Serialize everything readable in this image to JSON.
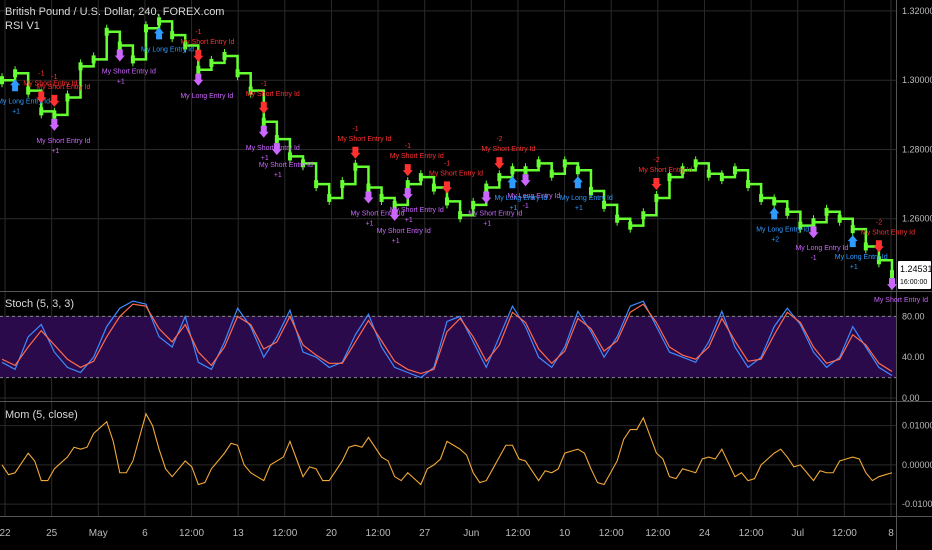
{
  "header": {
    "symbol_title": "British Pound / U.S. Dollar, 240, FOREX.com",
    "strategy_name": "RSI V1"
  },
  "colors": {
    "background": "#000000",
    "grid": "#2a2a2a",
    "candle": "#66ff33",
    "long": "#2f9bff",
    "short": "#ff3030",
    "exit": "#cc66ff",
    "stoch_k": "#3d8bff",
    "stoch_d": "#ff6a4d",
    "stoch_band": "#2a0a4a",
    "momentum": "#f2a93b"
  },
  "price_pane": {
    "price_badge": "1.24531",
    "price_badge_sub": "16:00:00"
  },
  "stoch_pane": {
    "title": "Stoch (5, 3, 3)"
  },
  "mom_pane": {
    "title": "Mom (5, close)"
  },
  "chart_data": [
    {
      "type": "line",
      "pane": "price",
      "series": [
        {
          "name": "GBP/USD",
          "values": [
            1.3,
            1.302,
            1.297,
            1.291,
            1.29,
            1.295,
            1.304,
            1.306,
            1.314,
            1.31,
            1.306,
            1.315,
            1.317,
            1.313,
            1.31,
            1.303,
            1.305,
            1.307,
            1.302,
            1.297,
            1.288,
            1.283,
            1.278,
            1.276,
            1.27,
            1.266,
            1.27,
            1.275,
            1.269,
            1.266,
            1.264,
            1.27,
            1.272,
            1.269,
            1.265,
            1.261,
            1.264,
            1.269,
            1.272,
            1.274,
            1.274,
            1.276,
            1.273,
            1.276,
            1.274,
            1.268,
            1.264,
            1.26,
            1.258,
            1.261,
            1.266,
            1.272,
            1.274,
            1.276,
            1.273,
            1.272,
            1.274,
            1.27,
            1.266,
            1.265,
            1.262,
            1.258,
            1.259,
            1.262,
            1.26,
            1.257,
            1.252,
            1.248,
            1.244
          ]
        }
      ],
      "x_ticks": [
        "22",
        "25",
        "May",
        "6",
        "12:00",
        "13",
        "12:00",
        "20",
        "12:00",
        "27",
        "Jun",
        "12:00",
        "10",
        "12:00",
        "12:00",
        "24",
        "12:00",
        "Jul",
        "12:00",
        "8"
      ],
      "y_ticks": [
        "1.32000",
        "1.30000",
        "1.28000",
        "1.26000"
      ],
      "ylim": [
        1.24,
        1.322
      ],
      "signals": [
        {
          "kind": "short",
          "index": 3,
          "label": "My Short Entry Id",
          "qty": "-1"
        },
        {
          "kind": "short",
          "index": 4,
          "label": "My Short Entry Id",
          "qty": "-1"
        },
        {
          "kind": "long",
          "index": 1,
          "label": "My Long Entry Id",
          "qty": "+1"
        },
        {
          "kind": "exit",
          "index": 4,
          "label": "My Short Entry Id",
          "qty": "+1"
        },
        {
          "kind": "exit",
          "index": 9,
          "label": "My Short Entry Id",
          "qty": "+1"
        },
        {
          "kind": "long",
          "index": 12,
          "label": "My Long Entry Id",
          "qty": ""
        },
        {
          "kind": "exit",
          "index": 15,
          "label": "My Long Entry Id",
          "qty": ""
        },
        {
          "kind": "short",
          "index": 15,
          "label": "My Short Entry Id",
          "qty": "-1"
        },
        {
          "kind": "short",
          "index": 20,
          "label": "My Short Entry Id",
          "qty": "-1"
        },
        {
          "kind": "exit",
          "index": 20,
          "label": "My Short Entry Id",
          "qty": "+1"
        },
        {
          "kind": "exit",
          "index": 21,
          "label": "My Short Entry Id",
          "qty": "+1"
        },
        {
          "kind": "short",
          "index": 27,
          "label": "My Short Entry Id",
          "qty": "-1"
        },
        {
          "kind": "exit",
          "index": 28,
          "label": "My Short Entry Id",
          "qty": "+1"
        },
        {
          "kind": "short",
          "index": 31,
          "label": "My Short Entry Id",
          "qty": "-1"
        },
        {
          "kind": "exit",
          "index": 30,
          "label": "My Short Entry Id",
          "qty": "+1"
        },
        {
          "kind": "exit",
          "index": 31,
          "label": "My Short Entry Id",
          "qty": "+1"
        },
        {
          "kind": "short",
          "index": 34,
          "label": "My Short Entry Id",
          "qty": "-1"
        },
        {
          "kind": "exit",
          "index": 37,
          "label": "My Short Entry Id",
          "qty": "+1"
        },
        {
          "kind": "short",
          "index": 38,
          "label": "My Short Entry Id",
          "qty": "-2"
        },
        {
          "kind": "long",
          "index": 39,
          "label": "My Long Entry Id",
          "qty": "+1"
        },
        {
          "kind": "exit",
          "index": 40,
          "label": "My Long Entry Id",
          "qty": "-1"
        },
        {
          "kind": "long",
          "index": 44,
          "label": "My Long Entry Id",
          "qty": "+1"
        },
        {
          "kind": "short",
          "index": 50,
          "label": "My Short Entry Id",
          "qty": "-2"
        },
        {
          "kind": "long",
          "index": 59,
          "label": "My Long Entry Id",
          "qty": "+2"
        },
        {
          "kind": "exit",
          "index": 62,
          "label": "My Long Entry Id",
          "qty": "-1"
        },
        {
          "kind": "long",
          "index": 65,
          "label": "My Long Entry Id",
          "qty": "+1"
        },
        {
          "kind": "short",
          "index": 67,
          "label": "My Short Entry Id",
          "qty": "-2"
        },
        {
          "kind": "exit",
          "index": 68,
          "label": "My Short Entry Id",
          "qty": ""
        }
      ]
    },
    {
      "type": "line",
      "pane": "stoch",
      "series": [
        {
          "name": "%K",
          "values": [
            35,
            28,
            60,
            72,
            45,
            30,
            25,
            40,
            70,
            88,
            95,
            92,
            60,
            50,
            80,
            35,
            28,
            55,
            88,
            70,
            40,
            60,
            86,
            45,
            40,
            30,
            35,
            62,
            82,
            50,
            30,
            25,
            20,
            30,
            75,
            80,
            55,
            30,
            60,
            90,
            70,
            40,
            30,
            50,
            85,
            65,
            40,
            60,
            90,
            95,
            70,
            45,
            40,
            35,
            55,
            85,
            50,
            30,
            40,
            70,
            88,
            72,
            45,
            30,
            40,
            70,
            50,
            30,
            22
          ]
        },
        {
          "name": "%D",
          "values": [
            38,
            32,
            50,
            66,
            52,
            38,
            30,
            36,
            60,
            80,
            92,
            90,
            68,
            55,
            72,
            45,
            32,
            50,
            80,
            72,
            48,
            55,
            80,
            52,
            42,
            34,
            34,
            55,
            76,
            56,
            36,
            28,
            24,
            28,
            65,
            78,
            60,
            36,
            52,
            84,
            74,
            48,
            34,
            46,
            78,
            68,
            46,
            56,
            84,
            92,
            74,
            50,
            42,
            38,
            50,
            78,
            56,
            36,
            38,
            62,
            84,
            74,
            50,
            34,
            38,
            62,
            52,
            34,
            26
          ]
        }
      ],
      "y_ticks": [
        "80.00",
        "40.00",
        "0.00"
      ],
      "ylim": [
        0,
        100
      ],
      "bands": [
        20,
        80
      ]
    },
    {
      "type": "line",
      "pane": "momentum",
      "series": [
        {
          "name": "Mom",
          "values": [
            0.0,
            -0.002,
            0.003,
            -0.004,
            -0.001,
            0.002,
            0.004,
            0.008,
            0.011,
            -0.002,
            0.001,
            0.013,
            0.004,
            -0.003,
            0.001,
            -0.005,
            -0.001,
            0.003,
            0.005,
            -0.002,
            -0.004,
            0.001,
            0.006,
            -0.003,
            -0.001,
            -0.004,
            0.001,
            0.005,
            0.007,
            0.002,
            -0.003,
            -0.002,
            -0.005,
            0.0,
            0.006,
            0.004,
            -0.002,
            -0.004,
            0.002,
            0.005,
            0.001,
            -0.004,
            -0.002,
            0.003,
            0.004,
            -0.001,
            -0.005,
            0.001,
            0.009,
            0.012,
            0.003,
            -0.003,
            -0.001,
            -0.002,
            0.002,
            0.004,
            -0.003,
            -0.004,
            0.0,
            0.003,
            0.002,
            0.0,
            -0.004,
            -0.002,
            0.001,
            0.002,
            -0.002,
            -0.003,
            -0.002
          ]
        }
      ],
      "y_ticks": [
        "0.01000",
        "0.00000",
        "-0.01000"
      ],
      "ylim": [
        -0.012,
        0.015
      ]
    }
  ]
}
